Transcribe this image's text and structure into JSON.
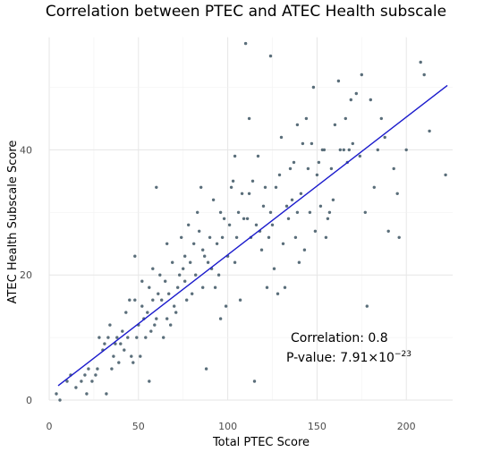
{
  "chart_data": {
    "type": "scatter",
    "title": "Correlation between PTEC and ATEC Health subscale",
    "xlabel": "Total PTEC Score",
    "ylabel": "ATEC Health Subscale Score",
    "xlim": [
      0,
      226
    ],
    "ylim": [
      0,
      58
    ],
    "xticks": [
      0,
      50,
      100,
      150,
      200
    ],
    "yticks": [
      0,
      20,
      40
    ],
    "grid": true,
    "point_color": "#5a6e7a",
    "line_color": "#1a1acc",
    "regression_line": {
      "x": [
        5,
        223
      ],
      "y": [
        2.3,
        50.3
      ]
    },
    "annotations": {
      "correlation": "Correlation: 0.8",
      "pvalue_prefix": "P-value: 7.91×10",
      "pvalue_exponent": "−23"
    },
    "points": [
      [
        4,
        1
      ],
      [
        6,
        0
      ],
      [
        10,
        3
      ],
      [
        12,
        4
      ],
      [
        15,
        2
      ],
      [
        18,
        3
      ],
      [
        20,
        4
      ],
      [
        21,
        1
      ],
      [
        22,
        5
      ],
      [
        24,
        3
      ],
      [
        26,
        4
      ],
      [
        27,
        5
      ],
      [
        28,
        10
      ],
      [
        30,
        8
      ],
      [
        31,
        9
      ],
      [
        32,
        1
      ],
      [
        33,
        10
      ],
      [
        34,
        12
      ],
      [
        35,
        5
      ],
      [
        36,
        7
      ],
      [
        37,
        9
      ],
      [
        38,
        10
      ],
      [
        39,
        6
      ],
      [
        40,
        9
      ],
      [
        41,
        11
      ],
      [
        42,
        8
      ],
      [
        43,
        14
      ],
      [
        44,
        10
      ],
      [
        45,
        16
      ],
      [
        46,
        7
      ],
      [
        47,
        6
      ],
      [
        48,
        16
      ],
      [
        48,
        23
      ],
      [
        49,
        10
      ],
      [
        50,
        12
      ],
      [
        51,
        7
      ],
      [
        52,
        15
      ],
      [
        53,
        13
      ],
      [
        54,
        10
      ],
      [
        55,
        14
      ],
      [
        56,
        18
      ],
      [
        57,
        11
      ],
      [
        58,
        16
      ],
      [
        59,
        12
      ],
      [
        60,
        13
      ],
      [
        61,
        17
      ],
      [
        62,
        20
      ],
      [
        63,
        16
      ],
      [
        64,
        10
      ],
      [
        65,
        19
      ],
      [
        66,
        13
      ],
      [
        67,
        17
      ],
      [
        68,
        12
      ],
      [
        69,
        22
      ],
      [
        70,
        15
      ],
      [
        71,
        14
      ],
      [
        72,
        18
      ],
      [
        73,
        20
      ],
      [
        74,
        26
      ],
      [
        75,
        21
      ],
      [
        76,
        19
      ],
      [
        77,
        16
      ],
      [
        78,
        28
      ],
      [
        79,
        22
      ],
      [
        80,
        17
      ],
      [
        81,
        25
      ],
      [
        82,
        20
      ],
      [
        83,
        30
      ],
      [
        84,
        27
      ],
      [
        85,
        34
      ],
      [
        86,
        18
      ],
      [
        87,
        23
      ],
      [
        88,
        5
      ],
      [
        89,
        22
      ],
      [
        90,
        26
      ],
      [
        91,
        21
      ],
      [
        92,
        32
      ],
      [
        93,
        18
      ],
      [
        94,
        25
      ],
      [
        95,
        20
      ],
      [
        96,
        13
      ],
      [
        97,
        26
      ],
      [
        98,
        29
      ],
      [
        99,
        15
      ],
      [
        100,
        23
      ],
      [
        101,
        28
      ],
      [
        102,
        34
      ],
      [
        103,
        35
      ],
      [
        104,
        22
      ],
      [
        105,
        26
      ],
      [
        106,
        30
      ],
      [
        107,
        16
      ],
      [
        108,
        33
      ],
      [
        109,
        29
      ],
      [
        110,
        57
      ],
      [
        111,
        29
      ],
      [
        112,
        33
      ],
      [
        113,
        26
      ],
      [
        114,
        35
      ],
      [
        115,
        3
      ],
      [
        116,
        28
      ],
      [
        117,
        39
      ],
      [
        118,
        27
      ],
      [
        119,
        24
      ],
      [
        120,
        31
      ],
      [
        121,
        34
      ],
      [
        122,
        18
      ],
      [
        123,
        26
      ],
      [
        124,
        30
      ],
      [
        125,
        28
      ],
      [
        126,
        21
      ],
      [
        127,
        34
      ],
      [
        128,
        17
      ],
      [
        129,
        36
      ],
      [
        130,
        42
      ],
      [
        131,
        25
      ],
      [
        132,
        18
      ],
      [
        133,
        31
      ],
      [
        134,
        29
      ],
      [
        135,
        37
      ],
      [
        136,
        32
      ],
      [
        137,
        38
      ],
      [
        138,
        26
      ],
      [
        139,
        30
      ],
      [
        140,
        22
      ],
      [
        141,
        33
      ],
      [
        142,
        41
      ],
      [
        143,
        24
      ],
      [
        144,
        45
      ],
      [
        145,
        37
      ],
      [
        146,
        30
      ],
      [
        147,
        41
      ],
      [
        148,
        50
      ],
      [
        149,
        27
      ],
      [
        150,
        36
      ],
      [
        151,
        38
      ],
      [
        152,
        31
      ],
      [
        153,
        40
      ],
      [
        154,
        40
      ],
      [
        155,
        26
      ],
      [
        156,
        29
      ],
      [
        157,
        30
      ],
      [
        158,
        37
      ],
      [
        159,
        32
      ],
      [
        160,
        44
      ],
      [
        162,
        51
      ],
      [
        165,
        40
      ],
      [
        166,
        45
      ],
      [
        167,
        38
      ],
      [
        168,
        40
      ],
      [
        169,
        48
      ],
      [
        170,
        41
      ],
      [
        172,
        49
      ],
      [
        174,
        39
      ],
      [
        175,
        52
      ],
      [
        177,
        30
      ],
      [
        178,
        15
      ],
      [
        180,
        48
      ],
      [
        182,
        34
      ],
      [
        184,
        40
      ],
      [
        186,
        45
      ],
      [
        188,
        42
      ],
      [
        190,
        27
      ],
      [
        193,
        37
      ],
      [
        195,
        33
      ],
      [
        196,
        26
      ],
      [
        200,
        40
      ],
      [
        208,
        54
      ],
      [
        210,
        52
      ],
      [
        213,
        43
      ],
      [
        222,
        36
      ],
      [
        163,
        40
      ],
      [
        139,
        44
      ],
      [
        124,
        55
      ],
      [
        112,
        45
      ],
      [
        104,
        39
      ],
      [
        96,
        30
      ],
      [
        86,
        24
      ],
      [
        76,
        23
      ],
      [
        66,
        25
      ],
      [
        58,
        21
      ],
      [
        52,
        19
      ],
      [
        56,
        3
      ],
      [
        60,
        34
      ]
    ]
  }
}
